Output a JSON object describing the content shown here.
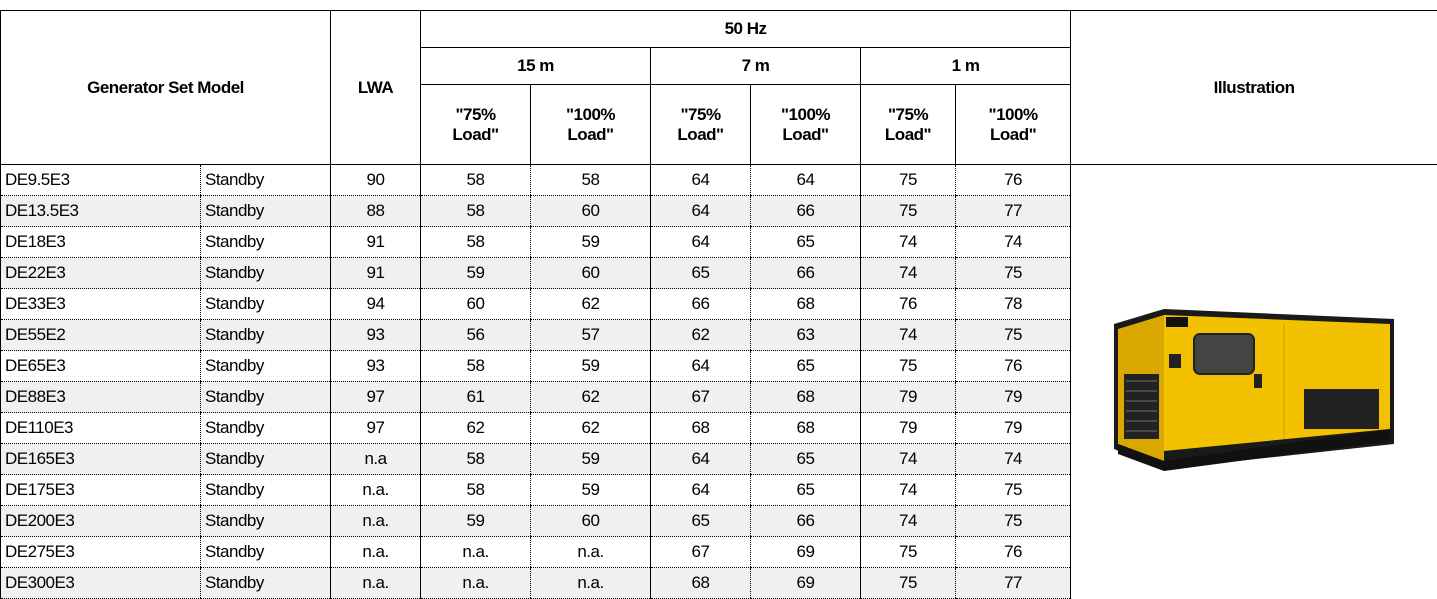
{
  "table": {
    "header": {
      "model": "Generator Set Model",
      "lwa": "LWA",
      "frequency": "50 Hz",
      "distances": [
        "15 m",
        "7 m",
        "1 m"
      ],
      "loads": [
        "\"75% Load\"",
        "\"100% Load\"",
        "\"75% Load\"",
        "\"100% Load\"",
        "\"75% Load\"",
        "\"100% Load\""
      ],
      "illustration": "Illustration"
    },
    "rows": [
      [
        "DE9.5E3",
        "Standby",
        90,
        58,
        58,
        64,
        64,
        75,
        76
      ],
      [
        "DE13.5E3",
        "Standby",
        88,
        58,
        60,
        64,
        66,
        75,
        77
      ],
      [
        "DE18E3",
        "Standby",
        91,
        58,
        59,
        64,
        65,
        74,
        74
      ],
      [
        "DE22E3",
        "Standby",
        91,
        59,
        60,
        65,
        66,
        74,
        75
      ],
      [
        "DE33E3",
        "Standby",
        94,
        60,
        62,
        66,
        68,
        76,
        78
      ],
      [
        "DE55E2",
        "Standby",
        93,
        56,
        57,
        62,
        63,
        74,
        75
      ],
      [
        "DE65E3",
        "Standby",
        93,
        58,
        59,
        64,
        65,
        75,
        76
      ],
      [
        "DE88E3",
        "Standby",
        97,
        61,
        62,
        67,
        68,
        79,
        79
      ],
      [
        "DE110E3",
        "Standby",
        97,
        62,
        62,
        68,
        68,
        79,
        79
      ],
      [
        "DE165E3",
        "Standby",
        "n.a",
        58,
        59,
        64,
        65,
        74,
        74
      ],
      [
        "DE175E3",
        "Standby",
        "n.a.",
        58,
        59,
        64,
        65,
        74,
        75
      ],
      [
        "DE200E3",
        "Standby",
        "n.a.",
        59,
        60,
        65,
        66,
        74,
        75
      ],
      [
        "DE275E3",
        "Standby",
        "n.a.",
        "n.a.",
        "n.a.",
        67,
        69,
        75,
        76
      ],
      [
        "DE300E3",
        "Standby",
        "n.a.",
        "n.a.",
        "n.a.",
        68,
        69,
        75,
        77
      ]
    ]
  }
}
